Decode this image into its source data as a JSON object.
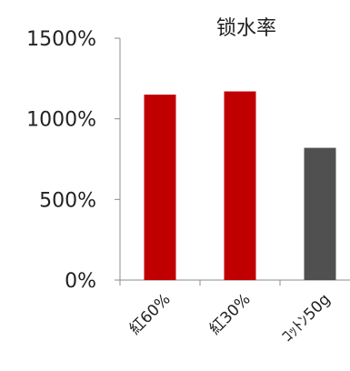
{
  "chart_data": {
    "type": "bar",
    "title": "锁水率",
    "categories": [
      "紅60%",
      "紅30%",
      "ｺｯﾄﾝ50g"
    ],
    "values": [
      1150,
      1170,
      820
    ],
    "bar_colors": [
      "#c00000",
      "#c00000",
      "#505050"
    ],
    "ylim": [
      0,
      1500
    ],
    "yticks": [
      0,
      500,
      1000,
      1500
    ],
    "ytick_labels": [
      "0%",
      "500%",
      "1000%",
      "1500%"
    ],
    "xlabel": "",
    "ylabel": "",
    "grid": false,
    "legend": "none"
  }
}
